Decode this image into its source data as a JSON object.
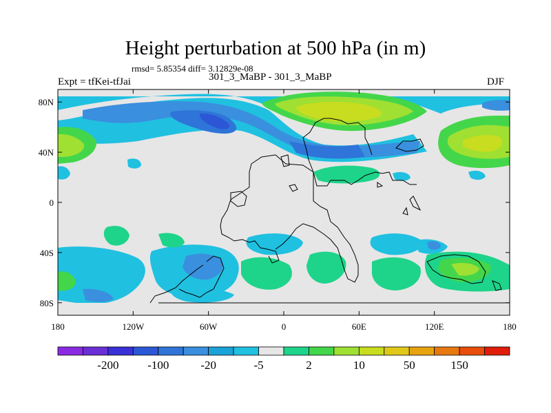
{
  "title": "Height perturbation at 500 hPa (in m)",
  "stats": "rmsd= 5.85354 diff= 3.12829e-08",
  "experiment": "Expt = tfKei-tfJai",
  "runs": "301_3_MaBP - 301_3_MaBP",
  "season": "DJF",
  "map": {
    "lon_range": [
      -180,
      180
    ],
    "lat_range": [
      -90,
      90
    ],
    "x_ticks": [
      "180",
      "120W",
      "60W",
      "0",
      "60E",
      "120E",
      "180"
    ],
    "y_ticks": [
      "80N",
      "40N",
      "0",
      "40S",
      "80S"
    ],
    "background_color": "#e6e6e6"
  },
  "colorbar": {
    "colors": [
      "#8a2be2",
      "#6a2fd6",
      "#3a30d8",
      "#2b57d6",
      "#2f74d8",
      "#3a8fde",
      "#1aa3d8",
      "#20c0e0",
      "#e6e6e6",
      "#1ed48a",
      "#44d64a",
      "#9fe032",
      "#c8dc20",
      "#e0c818",
      "#e8a410",
      "#e87810",
      "#e84e0a",
      "#e01c0a"
    ],
    "labels": [
      "-200",
      "-100",
      "-20",
      "-5",
      "2",
      "10",
      "50",
      "150"
    ]
  }
}
